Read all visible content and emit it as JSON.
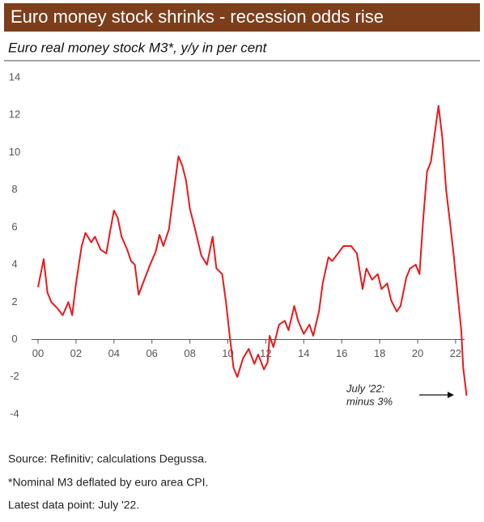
{
  "chart_data": {
    "type": "line",
    "title": "Euro money stock shrinks - recession odds rise",
    "subtitle": "Euro real money stock M3*, y/y in per cent",
    "x": [
      2000.0,
      2000.3,
      2000.5,
      2000.7,
      2001.0,
      2001.3,
      2001.6,
      2001.8,
      2002.0,
      2002.3,
      2002.5,
      2002.8,
      2003.0,
      2003.3,
      2003.6,
      2003.8,
      2004.0,
      2004.2,
      2004.4,
      2004.7,
      2004.9,
      2005.1,
      2005.3,
      2005.6,
      2005.9,
      2006.2,
      2006.4,
      2006.6,
      2006.9,
      2007.1,
      2007.4,
      2007.6,
      2007.8,
      2008.0,
      2008.3,
      2008.6,
      2008.9,
      2009.2,
      2009.4,
      2009.7,
      2009.9,
      2010.1,
      2010.3,
      2010.5,
      2010.8,
      2011.1,
      2011.4,
      2011.6,
      2011.9,
      2012.1,
      2012.2,
      2012.4,
      2012.7,
      2013.0,
      2013.2,
      2013.5,
      2013.7,
      2014.0,
      2014.3,
      2014.5,
      2014.8,
      2015.0,
      2015.3,
      2015.5,
      2015.8,
      2016.1,
      2016.5,
      2016.8,
      2017.1,
      2017.3,
      2017.6,
      2017.9,
      2018.1,
      2018.4,
      2018.6,
      2018.9,
      2019.1,
      2019.4,
      2019.6,
      2019.9,
      2020.1,
      2020.3,
      2020.5,
      2020.7,
      2020.9,
      2021.1,
      2021.3,
      2021.5,
      2021.7,
      2021.9,
      2022.1,
      2022.3,
      2022.4,
      2022.58
    ],
    "series": [
      {
        "name": "Euro real money stock M3",
        "color": "#e8191d",
        "values": [
          2.8,
          4.3,
          2.5,
          2.0,
          1.7,
          1.3,
          2.0,
          1.3,
          3.0,
          5.0,
          5.7,
          5.2,
          5.5,
          4.8,
          4.6,
          5.8,
          6.9,
          6.5,
          5.5,
          4.8,
          4.2,
          4.0,
          2.4,
          3.2,
          4.0,
          4.7,
          5.6,
          5.0,
          5.9,
          7.5,
          9.8,
          9.3,
          8.5,
          7.0,
          5.8,
          4.5,
          4.0,
          5.5,
          3.8,
          3.5,
          2.0,
          0.2,
          -1.5,
          -2.0,
          -1.0,
          -0.5,
          -1.3,
          -0.8,
          -1.6,
          -1.2,
          0.2,
          -0.4,
          0.8,
          1.0,
          0.5,
          1.8,
          1.0,
          0.3,
          0.8,
          0.2,
          1.5,
          3.0,
          4.4,
          4.2,
          4.6,
          5.0,
          5.0,
          4.6,
          2.7,
          3.8,
          3.2,
          3.5,
          2.7,
          3.0,
          2.1,
          1.5,
          1.8,
          3.3,
          3.8,
          4.0,
          3.5,
          6.5,
          9.0,
          9.5,
          11.0,
          12.5,
          10.8,
          8.0,
          6.3,
          4.5,
          2.5,
          0.5,
          -1.5,
          -3.0
        ]
      }
    ],
    "xlim": [
      2000,
      2022.9
    ],
    "xticks": [
      {
        "value": 2000,
        "label": "00"
      },
      {
        "value": 2002,
        "label": "02"
      },
      {
        "value": 2004,
        "label": "04"
      },
      {
        "value": 2006,
        "label": "06"
      },
      {
        "value": 2008,
        "label": "08"
      },
      {
        "value": 2010,
        "label": "10"
      },
      {
        "value": 2012,
        "label": "12"
      },
      {
        "value": 2014,
        "label": "14"
      },
      {
        "value": 2016,
        "label": "16"
      },
      {
        "value": 2018,
        "label": "18"
      },
      {
        "value": 2020,
        "label": "20"
      },
      {
        "value": 2022,
        "label": "22"
      }
    ],
    "ylim": [
      -4,
      14
    ],
    "yticks": [
      -4,
      -2,
      0,
      2,
      4,
      6,
      8,
      10,
      12,
      14
    ],
    "annotation": [
      "July '22:",
      "minus 3%"
    ],
    "notes": [
      "Source: Refinitiv; calculations Degussa.",
      "*Nominal M3 deflated by euro area CPI.",
      "Latest data point: July '22."
    ]
  }
}
